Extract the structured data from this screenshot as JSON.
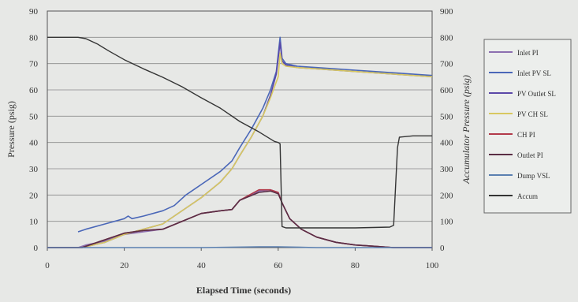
{
  "chart_data": {
    "type": "line",
    "title": "",
    "xlabel": "Elapsed Time (seconds)",
    "ylabel": "Pressure (psig)",
    "y2label": "Accumulator Pressure (psig)",
    "xlim": [
      0,
      100
    ],
    "ylim": [
      0,
      90
    ],
    "y2lim": [
      0,
      900
    ],
    "xticks": [
      "0",
      "20",
      "40",
      "60",
      "80",
      "100"
    ],
    "yticks": [
      "0",
      "10",
      "20",
      "30",
      "40",
      "50",
      "60",
      "70",
      "80",
      "90"
    ],
    "y2ticks": [
      "0",
      "100",
      "200",
      "300",
      "400",
      "500",
      "600",
      "700",
      "800",
      "900"
    ],
    "grid": true,
    "legend_position": "right",
    "series": [
      {
        "name": "Inlet PI",
        "color": "#8c6fb0",
        "axis": "left",
        "points": [
          [
            0,
            0
          ],
          [
            8,
            0
          ],
          [
            10,
            1
          ],
          [
            15,
            2.5
          ],
          [
            20,
            5
          ],
          [
            25,
            6
          ],
          [
            30,
            7
          ],
          [
            35,
            10
          ],
          [
            40,
            13
          ],
          [
            45,
            14
          ],
          [
            48,
            14.5
          ],
          [
            50,
            18
          ],
          [
            55,
            21.5
          ],
          [
            58,
            22
          ],
          [
            60,
            21
          ],
          [
            61,
            17
          ],
          [
            63,
            11
          ],
          [
            66,
            7
          ],
          [
            70,
            4
          ],
          [
            75,
            2
          ],
          [
            80,
            1
          ],
          [
            85,
            0.5
          ],
          [
            90,
            0
          ],
          [
            100,
            0
          ]
        ]
      },
      {
        "name": "Inlet PV SL",
        "color": "#4a67b8",
        "axis": "left",
        "points": [
          [
            8,
            6
          ],
          [
            10,
            7
          ],
          [
            15,
            9
          ],
          [
            20,
            11
          ],
          [
            21,
            12
          ],
          [
            22,
            11
          ],
          [
            25,
            12
          ],
          [
            30,
            14
          ],
          [
            33,
            16
          ],
          [
            36,
            20
          ],
          [
            40,
            24
          ],
          [
            45,
            29
          ],
          [
            48,
            33
          ],
          [
            50,
            38
          ],
          [
            53,
            45
          ],
          [
            56,
            53
          ],
          [
            58,
            60
          ],
          [
            59.5,
            67
          ],
          [
            60.5,
            80
          ],
          [
            61,
            72
          ],
          [
            62,
            70
          ],
          [
            65,
            69
          ],
          [
            70,
            68.5
          ],
          [
            80,
            67.5
          ],
          [
            90,
            66.5
          ],
          [
            100,
            65.5
          ]
        ]
      },
      {
        "name": "PV Outlet SL",
        "color": "#5b48a8",
        "axis": "left",
        "points": [
          [
            0,
            0
          ],
          [
            9,
            0
          ],
          [
            15,
            2
          ],
          [
            20,
            5
          ],
          [
            25,
            7
          ],
          [
            30,
            9
          ],
          [
            33,
            12
          ],
          [
            36,
            15
          ],
          [
            40,
            19
          ],
          [
            45,
            25
          ],
          [
            48,
            30
          ],
          [
            50,
            35
          ],
          [
            53,
            42
          ],
          [
            56,
            50
          ],
          [
            58,
            58
          ],
          [
            59.5,
            66
          ],
          [
            60.5,
            78
          ],
          [
            61,
            71
          ],
          [
            62,
            69.5
          ],
          [
            65,
            68.5
          ],
          [
            70,
            68
          ],
          [
            80,
            67
          ],
          [
            90,
            66
          ],
          [
            100,
            65
          ]
        ]
      },
      {
        "name": "PV CH SL",
        "color": "#d8c860",
        "axis": "left",
        "points": [
          [
            0,
            0
          ],
          [
            9,
            0
          ],
          [
            15,
            2
          ],
          [
            20,
            5
          ],
          [
            25,
            7
          ],
          [
            30,
            9
          ],
          [
            33,
            12
          ],
          [
            36,
            15
          ],
          [
            40,
            19
          ],
          [
            45,
            25
          ],
          [
            48,
            30
          ],
          [
            50,
            35
          ],
          [
            53,
            42
          ],
          [
            56,
            50
          ],
          [
            58,
            57
          ],
          [
            60,
            65
          ],
          [
            60.5,
            74
          ],
          [
            61,
            70
          ],
          [
            62,
            69
          ],
          [
            65,
            68.5
          ],
          [
            70,
            68
          ],
          [
            80,
            67
          ],
          [
            90,
            66
          ],
          [
            100,
            65
          ]
        ]
      },
      {
        "name": "CH PI",
        "color": "#b23a4a",
        "axis": "left",
        "points": [
          [
            0,
            0
          ],
          [
            9,
            0
          ],
          [
            12,
            1.5
          ],
          [
            15,
            3
          ],
          [
            20,
            5.5
          ],
          [
            25,
            6.5
          ],
          [
            30,
            7
          ],
          [
            35,
            10
          ],
          [
            40,
            13
          ],
          [
            45,
            14
          ],
          [
            48,
            14.5
          ],
          [
            50,
            18
          ],
          [
            55,
            22
          ],
          [
            58,
            22
          ],
          [
            60,
            21
          ],
          [
            61,
            17
          ],
          [
            63,
            11
          ],
          [
            66,
            7
          ],
          [
            70,
            4
          ],
          [
            75,
            2
          ],
          [
            80,
            1
          ],
          [
            85,
            0.5
          ],
          [
            90,
            0
          ],
          [
            100,
            0
          ]
        ]
      },
      {
        "name": "Outlet PI",
        "color": "#5a2e45",
        "axis": "left",
        "points": [
          [
            0,
            0
          ],
          [
            9,
            0
          ],
          [
            12,
            1.5
          ],
          [
            15,
            3
          ],
          [
            20,
            5.5
          ],
          [
            25,
            6.5
          ],
          [
            30,
            7
          ],
          [
            35,
            10
          ],
          [
            40,
            13
          ],
          [
            45,
            14
          ],
          [
            48,
            14.5
          ],
          [
            50,
            18
          ],
          [
            55,
            21
          ],
          [
            58,
            21.5
          ],
          [
            60,
            20.5
          ],
          [
            61,
            17
          ],
          [
            63,
            11
          ],
          [
            66,
            7
          ],
          [
            70,
            4
          ],
          [
            75,
            2
          ],
          [
            80,
            1
          ],
          [
            85,
            0.5
          ],
          [
            90,
            0
          ],
          [
            100,
            0
          ]
        ]
      },
      {
        "name": "Dump VSL",
        "color": "#5a7fb0",
        "axis": "left",
        "points": [
          [
            0,
            0
          ],
          [
            20,
            0
          ],
          [
            40,
            0
          ],
          [
            55,
            0.3
          ],
          [
            60,
            0.3
          ],
          [
            70,
            0
          ],
          [
            100,
            0
          ]
        ]
      },
      {
        "name": "Accum",
        "color": "#343434",
        "axis": "right",
        "points": [
          [
            0,
            800
          ],
          [
            8,
            800
          ],
          [
            10,
            795
          ],
          [
            13,
            775
          ],
          [
            16,
            748
          ],
          [
            20,
            715
          ],
          [
            25,
            680
          ],
          [
            30,
            648
          ],
          [
            35,
            612
          ],
          [
            40,
            570
          ],
          [
            45,
            530
          ],
          [
            50,
            480
          ],
          [
            55,
            440
          ],
          [
            59,
            404
          ],
          [
            60,
            400
          ],
          [
            60.5,
            395
          ],
          [
            61,
            80
          ],
          [
            62,
            75
          ],
          [
            70,
            75
          ],
          [
            80,
            75
          ],
          [
            89,
            78
          ],
          [
            90,
            85
          ],
          [
            91,
            380
          ],
          [
            91.5,
            420
          ],
          [
            95,
            425
          ],
          [
            100,
            425
          ]
        ]
      }
    ]
  }
}
